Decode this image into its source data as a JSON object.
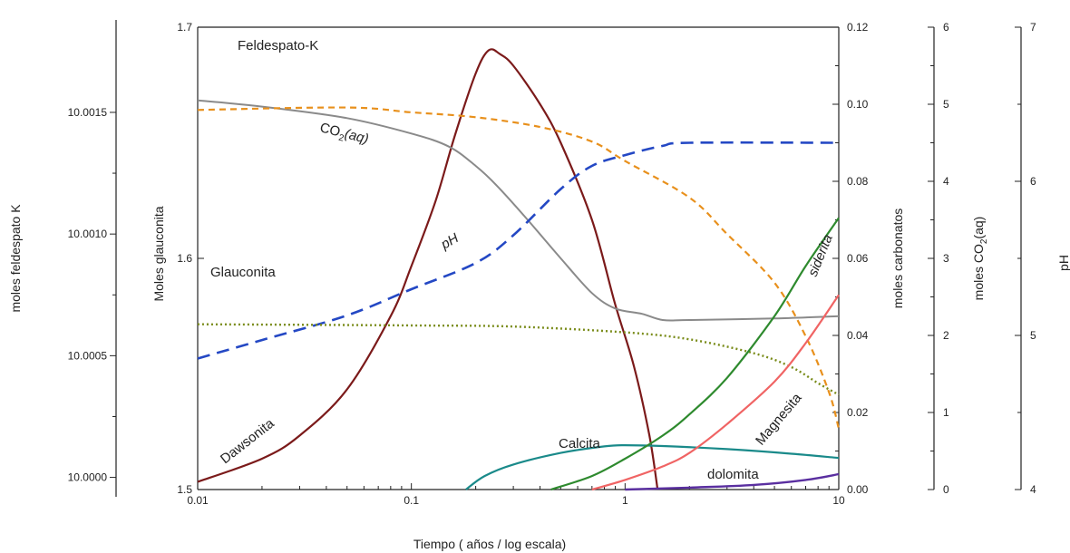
{
  "chart_data": {
    "type": "line",
    "xlabel": "Tiempo   ( años / log escala)",
    "x_scale": "log",
    "x_ticks": [
      0.01,
      0.1,
      1,
      10
    ],
    "x_tick_labels": [
      "0.01",
      "0.1",
      "1",
      "10"
    ],
    "xlim": [
      0.01,
      10
    ],
    "axes": {
      "feldespato": {
        "label": "moles feldespato K",
        "range": [
          9.99995,
          10.00185
        ],
        "ticks": [
          "10.0000",
          "10.0005",
          "10.0010",
          "10.0015"
        ],
        "tick_values": [
          10.0,
          10.0005,
          10.001,
          10.0015
        ]
      },
      "glauconita": {
        "label": "Moles glauconita",
        "range": [
          1.5,
          1.7
        ],
        "ticks": [
          "1.5",
          "1.6",
          "1.7"
        ],
        "tick_values": [
          1.5,
          1.6,
          1.7
        ]
      },
      "carbonatos": {
        "label": "moles carbonatos",
        "range": [
          0,
          0.12
        ],
        "ticks": [
          "0.00",
          "0.02",
          "0.04",
          "0.06",
          "0.08",
          "0.10",
          "0.12"
        ],
        "tick_values": [
          0,
          0.02,
          0.04,
          0.06,
          0.08,
          0.1,
          0.12
        ]
      },
      "co2": {
        "label_main": "moles CO",
        "label_sub": "2",
        "label_end": "(aq)",
        "range": [
          0,
          6
        ],
        "ticks": [
          "0",
          "1",
          "2",
          "3",
          "4",
          "5",
          "6"
        ],
        "tick_values": [
          0,
          1,
          2,
          3,
          4,
          5,
          6
        ]
      },
      "ph": {
        "label": "pH",
        "range": [
          4,
          7
        ],
        "ticks": [
          "4",
          "5",
          "6",
          "7"
        ],
        "tick_values": [
          4,
          5,
          6,
          7
        ]
      }
    },
    "series": [
      {
        "key": "dawsonita",
        "axis": "carbonatos",
        "color": "#7b1a1a",
        "dash": "",
        "width": 2.2,
        "points": [
          [
            0.01,
            0.002
          ],
          [
            0.02,
            0.008
          ],
          [
            0.03,
            0.014
          ],
          [
            0.05,
            0.026
          ],
          [
            0.08,
            0.045
          ],
          [
            0.1,
            0.058
          ],
          [
            0.13,
            0.075
          ],
          [
            0.16,
            0.092
          ],
          [
            0.2,
            0.108
          ],
          [
            0.23,
            0.114
          ],
          [
            0.26,
            0.113
          ],
          [
            0.3,
            0.11
          ],
          [
            0.4,
            0.1
          ],
          [
            0.5,
            0.09
          ],
          [
            0.7,
            0.07
          ],
          [
            0.9,
            0.048
          ],
          [
            1.1,
            0.032
          ],
          [
            1.3,
            0.014
          ],
          [
            1.42,
            0.0
          ]
        ]
      },
      {
        "key": "co2",
        "axis": "co2",
        "color": "#8a8a8a",
        "dash": "",
        "width": 2.0,
        "points": [
          [
            0.01,
            5.05
          ],
          [
            0.02,
            4.97
          ],
          [
            0.05,
            4.82
          ],
          [
            0.1,
            4.62
          ],
          [
            0.15,
            4.45
          ],
          [
            0.2,
            4.2
          ],
          [
            0.25,
            3.95
          ],
          [
            0.35,
            3.5
          ],
          [
            0.5,
            3.0
          ],
          [
            0.7,
            2.55
          ],
          [
            0.9,
            2.35
          ],
          [
            1.2,
            2.28
          ],
          [
            1.5,
            2.2
          ],
          [
            2.0,
            2.2
          ],
          [
            5.0,
            2.22
          ],
          [
            10,
            2.25
          ]
        ]
      },
      {
        "key": "ph",
        "axis": "ph",
        "color": "#2448c4",
        "dash": "14 8",
        "width": 2.6,
        "points": [
          [
            0.01,
            4.85
          ],
          [
            0.02,
            4.97
          ],
          [
            0.05,
            5.13
          ],
          [
            0.1,
            5.3
          ],
          [
            0.2,
            5.47
          ],
          [
            0.3,
            5.65
          ],
          [
            0.5,
            5.95
          ],
          [
            0.7,
            6.1
          ],
          [
            1.0,
            6.17
          ],
          [
            1.5,
            6.23
          ],
          [
            2.0,
            6.25
          ],
          [
            10,
            6.25
          ]
        ]
      },
      {
        "key": "feldespato",
        "axis": "feldespato",
        "color": "#e8901c",
        "dash": "7 5",
        "width": 2.2,
        "points": [
          [
            0.01,
            10.00151
          ],
          [
            0.05,
            10.00152
          ],
          [
            0.1,
            10.0015
          ],
          [
            0.2,
            10.00148
          ],
          [
            0.4,
            10.00144
          ],
          [
            0.7,
            10.00138
          ],
          [
            1.0,
            10.0013
          ],
          [
            2.0,
            10.00115
          ],
          [
            3.0,
            10.001
          ],
          [
            5.0,
            10.0008
          ],
          [
            7.0,
            10.00058
          ],
          [
            9.0,
            10.00035
          ],
          [
            10,
            10.0002
          ]
        ]
      },
      {
        "key": "glauconita",
        "axis": "glauconita",
        "color": "#7a8c1a",
        "dash": "2 3",
        "width": 2.4,
        "points": [
          [
            0.01,
            1.5715
          ],
          [
            0.1,
            1.571
          ],
          [
            0.3,
            1.5705
          ],
          [
            1.0,
            1.568
          ],
          [
            2.0,
            1.565
          ],
          [
            4.0,
            1.559
          ],
          [
            6.0,
            1.553
          ],
          [
            8.0,
            1.546
          ],
          [
            10,
            1.541
          ]
        ]
      },
      {
        "key": "calcita",
        "axis": "carbonatos",
        "color": "#1a8a8a",
        "dash": "",
        "width": 2.2,
        "points": [
          [
            0.18,
            0.0
          ],
          [
            0.22,
            0.0035
          ],
          [
            0.3,
            0.0065
          ],
          [
            0.5,
            0.0095
          ],
          [
            0.8,
            0.0112
          ],
          [
            1.0,
            0.0115
          ],
          [
            1.5,
            0.0113
          ],
          [
            3.0,
            0.0105
          ],
          [
            6.0,
            0.0093
          ],
          [
            10,
            0.0082
          ]
        ]
      },
      {
        "key": "siderita",
        "axis": "carbonatos",
        "color": "#2e8a2e",
        "dash": "",
        "width": 2.2,
        "points": [
          [
            0.45,
            0.0
          ],
          [
            0.7,
            0.0035
          ],
          [
            1.0,
            0.008
          ],
          [
            1.5,
            0.014
          ],
          [
            2.0,
            0.0195
          ],
          [
            3.0,
            0.029
          ],
          [
            5.0,
            0.045
          ],
          [
            7.0,
            0.058
          ],
          [
            10,
            0.0705
          ]
        ]
      },
      {
        "key": "magnesita",
        "axis": "carbonatos",
        "color": "#f06464",
        "dash": "",
        "width": 2.2,
        "points": [
          [
            0.7,
            0.0
          ],
          [
            1.0,
            0.0025
          ],
          [
            1.5,
            0.006
          ],
          [
            2.0,
            0.0095
          ],
          [
            3.0,
            0.017
          ],
          [
            5.0,
            0.028
          ],
          [
            7.0,
            0.038
          ],
          [
            10,
            0.0505
          ]
        ]
      },
      {
        "key": "dolomita",
        "axis": "carbonatos",
        "color": "#5a2fa0",
        "dash": "",
        "width": 2.4,
        "points": [
          [
            1.0,
            0.0
          ],
          [
            2.0,
            0.0005
          ],
          [
            4.0,
            0.0012
          ],
          [
            7.0,
            0.0025
          ],
          [
            10,
            0.004
          ]
        ]
      }
    ],
    "annotations": {
      "feldespato": "Feldespato-K",
      "glauconita": "Glauconita",
      "dawsonita": "Dawsonita",
      "ph": "pH",
      "co2_main": "CO",
      "co2_sub": "2",
      "co2_end": "(aq)",
      "calcita": "Calcita",
      "siderita": "siderita",
      "magnesita": "Magnesita",
      "dolomita": "dolomita"
    }
  }
}
